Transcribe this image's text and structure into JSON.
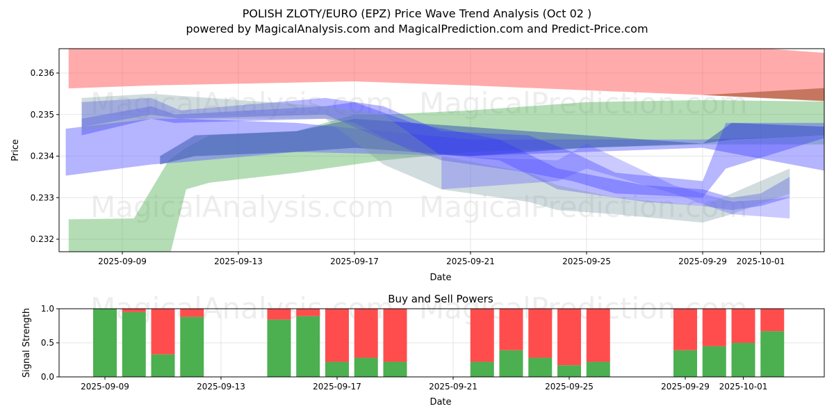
{
  "chart_data": [
    {
      "type": "area",
      "title": "POLISH ZLOTY/EURO (EPZ) Price Wave Trend Analysis (Oct 02 )",
      "subtitle": "powered by MagicalAnalysis.com and MagicalPrediction.com and Predict-Price.com",
      "xlabel": "Date",
      "ylabel": "Price",
      "x_unit": "days since 2025-09-09",
      "xlim": [
        -2.1,
        24.8
      ],
      "ylim": [
        0.23168,
        0.23658
      ],
      "xticks": [
        {
          "d": 0,
          "label": "2025-09-09"
        },
        {
          "d": 4,
          "label": "2025-09-13"
        },
        {
          "d": 8,
          "label": "2025-09-17"
        },
        {
          "d": 12,
          "label": "2025-09-21"
        },
        {
          "d": 16,
          "label": "2025-09-25"
        },
        {
          "d": 20,
          "label": "2025-09-29"
        },
        {
          "d": 22,
          "label": "2025-10-01"
        }
      ],
      "yticks": [
        0.232,
        0.233,
        0.234,
        0.235,
        0.236
      ],
      "bands": [
        {
          "name": "resistance",
          "color": "#ff6666",
          "opacity": 0.55,
          "pts": [
            [
              -1.85,
              0.23563,
              0.2367
            ],
            [
              1,
              0.2357,
              0.2367
            ],
            [
              8,
              0.2358,
              0.2367
            ],
            [
              12,
              0.2357,
              0.2367
            ],
            [
              20,
              0.23547,
              0.2367
            ],
            [
              24.5,
              0.23533,
              0.23647
            ]
          ]
        },
        {
          "name": "overlap",
          "color": "#a0522d",
          "opacity": 0.6,
          "pts": [
            [
              20,
              0.23547,
              0.23547
            ],
            [
              24.5,
              0.23531,
              0.23565
            ]
          ]
        },
        {
          "name": "support",
          "color": "#4caf50",
          "opacity": 0.42,
          "pts": [
            [
              -1.85,
              0.2315,
              0.23248
            ],
            [
              0.4,
              0.2315,
              0.2325
            ],
            [
              1.6,
              0.2315,
              0.2339
            ],
            [
              2.2,
              0.2332,
              0.2342
            ],
            [
              3,
              0.23336,
              0.2345
            ],
            [
              6,
              0.2336,
              0.2346
            ],
            [
              8,
              0.2338,
              0.235
            ],
            [
              9,
              0.2339,
              0.235
            ],
            [
              12,
              0.2341,
              0.2351
            ],
            [
              16,
              0.2342,
              0.2353
            ],
            [
              20,
              0.23428,
              0.23535
            ],
            [
              24.5,
              0.23428,
              0.23531
            ]
          ]
        },
        {
          "name": "wave-a",
          "color": "#6a6aff",
          "opacity": 0.5,
          "pts": [
            [
              -1.95,
              0.23353,
              0.23466
            ],
            [
              1,
              0.2338,
              0.2349
            ],
            [
              2,
              0.23385,
              0.2349
            ],
            [
              6,
              0.2341,
              0.2348
            ],
            [
              12,
              0.234,
              0.2344
            ],
            [
              20,
              0.2342,
              0.2344
            ],
            [
              24.5,
              0.23361,
              0.23449
            ]
          ]
        },
        {
          "name": "wave-b",
          "color": "#3a5ab0",
          "opacity": 0.55,
          "pts": [
            [
              1.3,
              0.2338,
              0.234
            ],
            [
              2.5,
              0.234,
              0.2345
            ],
            [
              6,
              0.2341,
              0.2346
            ],
            [
              8,
              0.2342,
              0.2349
            ],
            [
              12,
              0.234,
              0.2347
            ],
            [
              16,
              0.2342,
              0.2345
            ],
            [
              20,
              0.2343,
              0.2343
            ],
            [
              21,
              0.2344,
              0.2348
            ],
            [
              24.5,
              0.2345,
              0.2347
            ]
          ]
        },
        {
          "name": "wave-c",
          "color": "#3030ff",
          "opacity": 0.35,
          "pts": [
            [
              -1.4,
              0.2345,
              0.2349
            ],
            [
              1,
              0.2349,
              0.2352
            ],
            [
              1.8,
              0.2348,
              0.235
            ],
            [
              7,
              0.2349,
              0.2352
            ],
            [
              8,
              0.2348,
              0.2353
            ],
            [
              10,
              0.2341,
              0.2348
            ],
            [
              13,
              0.2339,
              0.2344
            ],
            [
              15,
              0.2332,
              0.2337
            ],
            [
              18,
              0.2329,
              0.2333
            ],
            [
              20,
              0.2328,
              0.2332
            ],
            [
              21,
              0.2327,
              0.233
            ],
            [
              22,
              0.2328,
              0.2331
            ],
            [
              23,
              0.233,
              0.2335
            ]
          ]
        },
        {
          "name": "wave-d",
          "color": "#3030ff",
          "opacity": 0.35,
          "pts": [
            [
              -1.4,
              0.2347,
              0.2353
            ],
            [
              1,
              0.235,
              0.2354
            ],
            [
              2,
              0.2349,
              0.2351
            ],
            [
              7,
              0.235,
              0.2354
            ],
            [
              9,
              0.2344,
              0.2352
            ],
            [
              11,
              0.2339,
              0.2346
            ],
            [
              14,
              0.2336,
              0.2345
            ],
            [
              15.5,
              0.2334,
              0.2341
            ],
            [
              17,
              0.2331,
              0.2336
            ],
            [
              20,
              0.233,
              0.2334
            ],
            [
              20.8,
              0.2337,
              0.2348
            ],
            [
              24.5,
              0.2345,
              0.2348
            ]
          ]
        },
        {
          "name": "wave-e",
          "color": "#7a9aa0",
          "opacity": 0.35,
          "pts": [
            [
              -1.4,
              0.2346,
              0.2354
            ],
            [
              1,
              0.2349,
              0.2355
            ],
            [
              7,
              0.2349,
              0.2352
            ],
            [
              9,
              0.2338,
              0.235
            ],
            [
              11,
              0.2332,
              0.234
            ],
            [
              14,
              0.2329,
              0.2336
            ],
            [
              15,
              0.2327,
              0.2333
            ],
            [
              17,
              0.2326,
              0.233
            ],
            [
              20,
              0.2324,
              0.2328
            ],
            [
              21,
              0.2326,
              0.2331
            ],
            [
              23,
              0.2331,
              0.2337
            ]
          ]
        },
        {
          "name": "wave-f",
          "color": "#5050ff",
          "opacity": 0.3,
          "pts": [
            [
              11,
              0.2332,
              0.234
            ],
            [
              15,
              0.2334,
              0.2339
            ],
            [
              16,
              0.2337,
              0.2343
            ],
            [
              19,
              0.2331,
              0.2333
            ],
            [
              21,
              0.2326,
              0.2329
            ],
            [
              23,
              0.2325,
              0.233
            ]
          ]
        }
      ]
    },
    {
      "type": "bar",
      "title": "Buy and Sell Powers",
      "xlabel": "Date",
      "ylabel": "Signal Strength",
      "ylim": [
        0,
        1
      ],
      "yticks": [
        "0.0",
        "0.5",
        "1.0"
      ],
      "xticks": [
        {
          "d": 0,
          "label": "2025-09-09"
        },
        {
          "d": 4,
          "label": "2025-09-13"
        },
        {
          "d": 8,
          "label": "2025-09-17"
        },
        {
          "d": 12,
          "label": "2025-09-21"
        },
        {
          "d": 16,
          "label": "2025-09-25"
        },
        {
          "d": 20,
          "label": "2025-09-29"
        },
        {
          "d": 22,
          "label": "2025-10-01"
        }
      ],
      "buy_color": "#4caf50",
      "sell_color": "#ff4d4d",
      "days": [
        0,
        1,
        2,
        3,
        6,
        7,
        8,
        9,
        10,
        13,
        14,
        15,
        16,
        17,
        20,
        21,
        22,
        23
      ],
      "buy": [
        1.0,
        0.95,
        0.33,
        0.88,
        0.84,
        0.89,
        0.22,
        0.28,
        0.22,
        0.22,
        0.39,
        0.28,
        0.17,
        0.22,
        0.39,
        0.45,
        0.5,
        0.67
      ]
    }
  ],
  "watermarks": [
    "MagicalAnalysis.com",
    "MagicalPrediction.com"
  ]
}
